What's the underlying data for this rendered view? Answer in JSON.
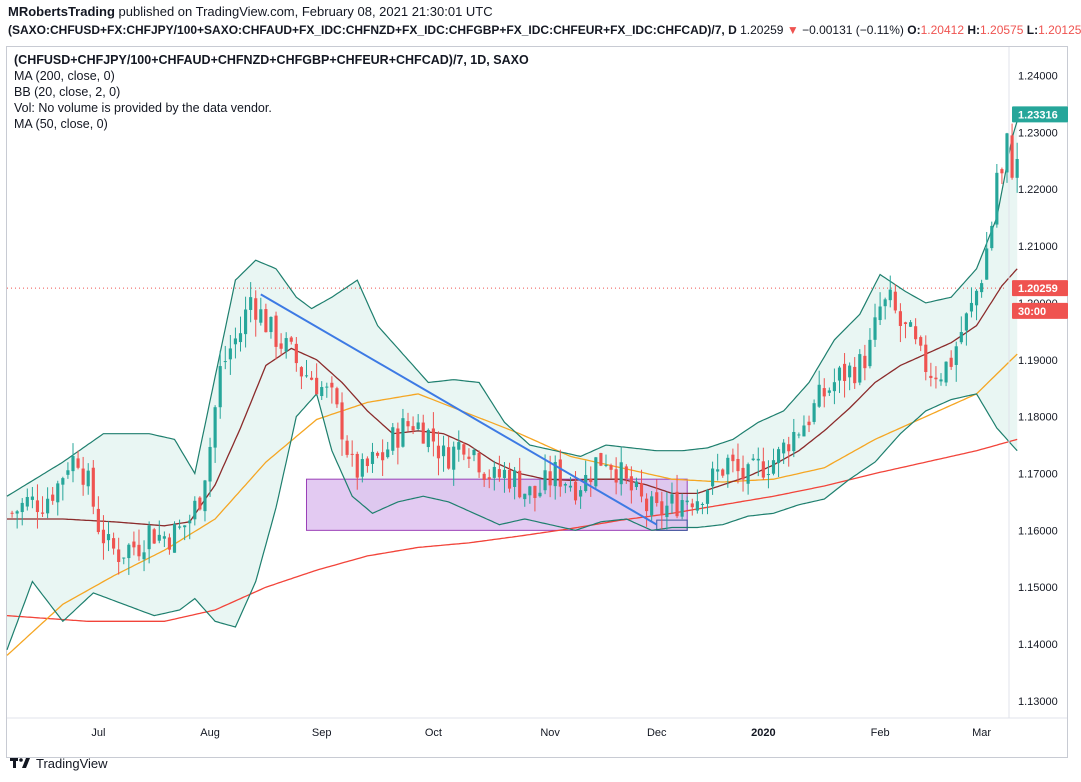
{
  "header": {
    "publisher": "MRobertsTrading",
    "published_text": "published on TradingView.com, February 08, 2021 21:30:01 UTC",
    "symbol": "(SAXO:CHFUSD+FX:CHFJPY/100+SAXO:CHFAUD+FX_IDC:CHFNZD+FX_IDC:CHFGBP+FX_IDC:CHFEUR+FX_IDC:CHFCAD)/7, D",
    "last": "1.20259",
    "change_arrow": "▼",
    "change": "−0.00131 (−0.11%)",
    "o_label": "O:",
    "o": "1.20412",
    "h_label": "H:",
    "h": "1.20575",
    "l_label": "L:",
    "l": "1.20125"
  },
  "legend": {
    "title": "(CHFUSD+CHFJPY/100+CHFAUD+CHFNZD+CHFGBP+CHFEUR+CHFCAD)/7, 1D, SAXO",
    "lines": [
      "MA (200, close, 0)",
      "BB (20, close, 2, 0)",
      "Vol: No volume is provided by the data vendor.",
      "MA (50, close, 0)"
    ]
  },
  "footer": {
    "brand": "TradingView"
  },
  "colors": {
    "up": "#26a69a",
    "down": "#ef5350",
    "ma200": "#f2443a",
    "ma50": "#f5a623",
    "bb_basis": "#8b2b2b",
    "bb_band": "#1e7f6e",
    "bb_fill": "#e9f6f3",
    "trendline": "#3d7ae4",
    "box_fill": "#d9b8ee",
    "box_stroke": "#9a3fb8"
  },
  "chart_data": {
    "type": "candlestick",
    "ylim": [
      1.127,
      1.245
    ],
    "y_ticks": [
      "1.24000",
      "1.23000",
      "1.22000",
      "1.21000",
      "1.20000",
      "1.19000",
      "1.18000",
      "1.17000",
      "1.16000",
      "1.15000",
      "1.14000",
      "1.13000"
    ],
    "y_tick_values": [
      1.24,
      1.23,
      1.22,
      1.21,
      1.2,
      1.19,
      1.18,
      1.17,
      1.16,
      1.15,
      1.14,
      1.13
    ],
    "x_ticks": [
      {
        "label": "Jul",
        "index": 17
      },
      {
        "label": "Aug",
        "index": 39
      },
      {
        "label": "Sep",
        "index": 61
      },
      {
        "label": "Oct",
        "index": 83
      },
      {
        "label": "Nov",
        "index": 106
      },
      {
        "label": "Dec",
        "index": 127
      },
      {
        "label": "2020",
        "index": 148
      },
      {
        "label": "Feb",
        "index": 171
      },
      {
        "label": "Mar",
        "index": 191
      }
    ],
    "x_range": [
      -1,
      196
    ],
    "price_tags": [
      {
        "text": "1.23316",
        "value": 1.23316,
        "bg": "#26a69a"
      },
      {
        "text": "1.20259",
        "value": 1.20259,
        "bg": "#ef5350"
      },
      {
        "text": "30:00",
        "value": 1.19859,
        "bg": "#ef5350"
      }
    ],
    "last_price_line": 1.20259,
    "close_anchors": [
      [
        0,
        1.163
      ],
      [
        3,
        1.165
      ],
      [
        6,
        1.165
      ],
      [
        9,
        1.168
      ],
      [
        11,
        1.172
      ],
      [
        13,
        1.173
      ],
      [
        15,
        1.168
      ],
      [
        17,
        1.161
      ],
      [
        19,
        1.157
      ],
      [
        21,
        1.156
      ],
      [
        23,
        1.157
      ],
      [
        25,
        1.1575
      ],
      [
        27,
        1.16
      ],
      [
        29,
        1.159
      ],
      [
        31,
        1.159
      ],
      [
        33,
        1.16
      ],
      [
        35,
        1.162
      ],
      [
        37,
        1.166
      ],
      [
        39,
        1.175
      ],
      [
        41,
        1.188
      ],
      [
        43,
        1.192
      ],
      [
        45,
        1.195
      ],
      [
        47,
        1.201
      ],
      [
        49,
        1.198
      ],
      [
        51,
        1.195
      ],
      [
        53,
        1.193
      ],
      [
        55,
        1.191
      ],
      [
        57,
        1.188
      ],
      [
        59,
        1.187
      ],
      [
        61,
        1.185
      ],
      [
        63,
        1.183
      ],
      [
        65,
        1.178
      ],
      [
        67,
        1.171
      ],
      [
        69,
        1.17
      ],
      [
        71,
        1.172
      ],
      [
        73,
        1.173
      ],
      [
        75,
        1.176
      ],
      [
        77,
        1.178
      ],
      [
        79,
        1.179
      ],
      [
        81,
        1.178
      ],
      [
        83,
        1.176
      ],
      [
        85,
        1.173
      ],
      [
        87,
        1.174
      ],
      [
        89,
        1.176
      ],
      [
        91,
        1.174
      ],
      [
        93,
        1.171
      ],
      [
        95,
        1.169
      ],
      [
        97,
        1.17
      ],
      [
        99,
        1.169
      ],
      [
        101,
        1.167
      ],
      [
        103,
        1.166
      ],
      [
        105,
        1.168
      ],
      [
        107,
        1.17
      ],
      [
        109,
        1.169
      ],
      [
        111,
        1.168
      ],
      [
        113,
        1.169
      ],
      [
        115,
        1.172
      ],
      [
        117,
        1.173
      ],
      [
        119,
        1.171
      ],
      [
        121,
        1.168
      ],
      [
        123,
        1.166
      ],
      [
        125,
        1.164
      ],
      [
        127,
        1.163
      ],
      [
        129,
        1.164
      ],
      [
        131,
        1.165
      ],
      [
        133,
        1.166
      ],
      [
        135,
        1.166
      ],
      [
        137,
        1.168
      ],
      [
        139,
        1.17
      ],
      [
        141,
        1.172
      ],
      [
        143,
        1.17
      ],
      [
        145,
        1.169
      ],
      [
        147,
        1.171
      ],
      [
        149,
        1.172
      ],
      [
        151,
        1.173
      ],
      [
        153,
        1.176
      ],
      [
        155,
        1.178
      ],
      [
        157,
        1.18
      ],
      [
        159,
        1.183
      ],
      [
        161,
        1.185
      ],
      [
        163,
        1.187
      ],
      [
        165,
        1.188
      ],
      [
        167,
        1.189
      ],
      [
        169,
        1.192
      ],
      [
        171,
        1.199
      ],
      [
        173,
        1.2
      ],
      [
        175,
        1.196
      ],
      [
        177,
        1.194
      ],
      [
        179,
        1.19
      ],
      [
        181,
        1.188
      ],
      [
        183,
        1.188
      ],
      [
        185,
        1.19
      ],
      [
        187,
        1.195
      ],
      [
        189,
        1.199
      ],
      [
        191,
        1.205
      ],
      [
        193,
        1.214
      ],
      [
        194,
        1.223
      ],
      [
        195,
        1.222
      ],
      [
        196,
        1.228
      ],
      [
        197,
        1.224
      ],
      [
        198,
        1.224
      ]
    ],
    "ma50_anchors": [
      [
        -1,
        1.138
      ],
      [
        10,
        1.147
      ],
      [
        20,
        1.152
      ],
      [
        30,
        1.1565
      ],
      [
        40,
        1.162
      ],
      [
        50,
        1.172
      ],
      [
        60,
        1.1795
      ],
      [
        70,
        1.1825
      ],
      [
        80,
        1.184
      ],
      [
        90,
        1.1805
      ],
      [
        100,
        1.177
      ],
      [
        110,
        1.173
      ],
      [
        120,
        1.171
      ],
      [
        130,
        1.169
      ],
      [
        140,
        1.1685
      ],
      [
        150,
        1.169
      ],
      [
        160,
        1.171
      ],
      [
        170,
        1.176
      ],
      [
        180,
        1.18
      ],
      [
        190,
        1.184
      ],
      [
        198,
        1.191
      ]
    ],
    "ma200_anchors": [
      [
        -1,
        1.145
      ],
      [
        15,
        1.144
      ],
      [
        30,
        1.144
      ],
      [
        40,
        1.146
      ],
      [
        50,
        1.15
      ],
      [
        60,
        1.153
      ],
      [
        70,
        1.1555
      ],
      [
        80,
        1.157
      ],
      [
        90,
        1.1578
      ],
      [
        100,
        1.159
      ],
      [
        110,
        1.1603
      ],
      [
        120,
        1.1618
      ],
      [
        130,
        1.163
      ],
      [
        140,
        1.1645
      ],
      [
        150,
        1.166
      ],
      [
        160,
        1.1678
      ],
      [
        170,
        1.17
      ],
      [
        180,
        1.172
      ],
      [
        190,
        1.174
      ],
      [
        198,
        1.176
      ]
    ],
    "bb_basis_anchors": [
      [
        -1,
        1.162
      ],
      [
        10,
        1.162
      ],
      [
        20,
        1.1615
      ],
      [
        30,
        1.1608
      ],
      [
        35,
        1.1615
      ],
      [
        40,
        1.168
      ],
      [
        45,
        1.178
      ],
      [
        50,
        1.189
      ],
      [
        55,
        1.192
      ],
      [
        60,
        1.19
      ],
      [
        65,
        1.186
      ],
      [
        70,
        1.181
      ],
      [
        75,
        1.177
      ],
      [
        80,
        1.1775
      ],
      [
        85,
        1.177
      ],
      [
        90,
        1.175
      ],
      [
        95,
        1.172
      ],
      [
        100,
        1.17
      ],
      [
        105,
        1.169
      ],
      [
        110,
        1.1688
      ],
      [
        115,
        1.169
      ],
      [
        120,
        1.169
      ],
      [
        125,
        1.168
      ],
      [
        130,
        1.1665
      ],
      [
        135,
        1.1665
      ],
      [
        140,
        1.168
      ],
      [
        145,
        1.1695
      ],
      [
        150,
        1.1715
      ],
      [
        155,
        1.174
      ],
      [
        160,
        1.1775
      ],
      [
        165,
        1.1815
      ],
      [
        170,
        1.186
      ],
      [
        175,
        1.189
      ],
      [
        180,
        1.191
      ],
      [
        185,
        1.193
      ],
      [
        190,
        1.196
      ],
      [
        195,
        1.203
      ],
      [
        198,
        1.206
      ]
    ],
    "bb_upper_anchors": [
      [
        -1,
        1.166
      ],
      [
        10,
        1.172
      ],
      [
        18,
        1.177
      ],
      [
        27,
        1.177
      ],
      [
        32,
        1.176
      ],
      [
        36,
        1.17
      ],
      [
        40,
        1.187
      ],
      [
        44,
        1.204
      ],
      [
        48,
        1.2075
      ],
      [
        52,
        1.206
      ],
      [
        56,
        1.201
      ],
      [
        59,
        1.199
      ],
      [
        63,
        1.201
      ],
      [
        68,
        1.204
      ],
      [
        72,
        1.196
      ],
      [
        77,
        1.191
      ],
      [
        82,
        1.186
      ],
      [
        87,
        1.1865
      ],
      [
        92,
        1.186
      ],
      [
        97,
        1.179
      ],
      [
        102,
        1.175
      ],
      [
        107,
        1.174
      ],
      [
        112,
        1.173
      ],
      [
        117,
        1.175
      ],
      [
        122,
        1.1745
      ],
      [
        127,
        1.174
      ],
      [
        132,
        1.174
      ],
      [
        137,
        1.1745
      ],
      [
        142,
        1.176
      ],
      [
        147,
        1.179
      ],
      [
        152,
        1.181
      ],
      [
        157,
        1.186
      ],
      [
        162,
        1.1935
      ],
      [
        167,
        1.198
      ],
      [
        171,
        1.205
      ],
      [
        176,
        1.202
      ],
      [
        180,
        1.2
      ],
      [
        185,
        1.201
      ],
      [
        190,
        1.206
      ],
      [
        194,
        1.215
      ],
      [
        197,
        1.229
      ],
      [
        198,
        1.232
      ]
    ],
    "bb_lower_anchors": [
      [
        -1,
        1.139
      ],
      [
        4,
        1.151
      ],
      [
        10,
        1.144
      ],
      [
        16,
        1.149
      ],
      [
        22,
        1.147
      ],
      [
        28,
        1.145
      ],
      [
        33,
        1.146
      ],
      [
        36,
        1.148
      ],
      [
        40,
        1.144
      ],
      [
        44,
        1.143
      ],
      [
        48,
        1.151
      ],
      [
        52,
        1.164
      ],
      [
        56,
        1.18
      ],
      [
        60,
        1.184
      ],
      [
        63,
        1.174
      ],
      [
        67,
        1.166
      ],
      [
        71,
        1.163
      ],
      [
        76,
        1.165
      ],
      [
        81,
        1.166
      ],
      [
        86,
        1.165
      ],
      [
        91,
        1.163
      ],
      [
        96,
        1.161
      ],
      [
        101,
        1.162
      ],
      [
        106,
        1.161
      ],
      [
        111,
        1.16
      ],
      [
        116,
        1.1615
      ],
      [
        121,
        1.162
      ],
      [
        126,
        1.16
      ],
      [
        130,
        1.1605
      ],
      [
        135,
        1.1605
      ],
      [
        140,
        1.161
      ],
      [
        145,
        1.1625
      ],
      [
        150,
        1.163
      ],
      [
        155,
        1.1645
      ],
      [
        160,
        1.1655
      ],
      [
        165,
        1.169
      ],
      [
        170,
        1.172
      ],
      [
        175,
        1.177
      ],
      [
        180,
        1.181
      ],
      [
        185,
        1.183
      ],
      [
        190,
        1.184
      ],
      [
        194,
        1.178
      ],
      [
        198,
        1.174
      ]
    ],
    "trendline": [
      [
        49,
        1.2015
      ],
      [
        127,
        1.161
      ]
    ],
    "rectangle": {
      "x0": 58,
      "x1": 133,
      "y_top": 1.169,
      "y_bottom": 1.16
    },
    "small_rect": {
      "x0": 127,
      "x1": 133,
      "y_top": 1.1618,
      "y_bottom": 1.16
    }
  }
}
